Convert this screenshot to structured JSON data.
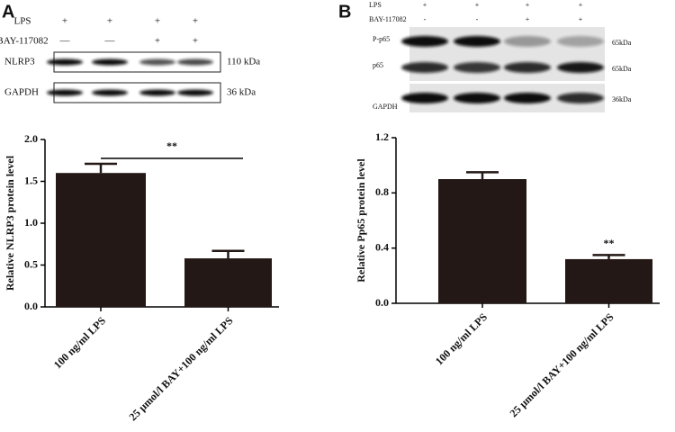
{
  "panel_labels": [
    "A",
    "B"
  ],
  "blots": [
    {
      "rows": [
        {
          "label": "LPS",
          "marks": [
            "+",
            "+",
            "+",
            "+"
          ]
        },
        {
          "label": "BAY-117082",
          "marks": [
            "—",
            "—",
            "+",
            "+"
          ]
        }
      ],
      "bands": [
        {
          "label": "NLRP3",
          "size": "110 kDa"
        },
        {
          "label": "GAPDH",
          "size": "36 kDa"
        }
      ]
    },
    {
      "rows": [
        {
          "label": "LPS",
          "marks": [
            "+",
            "+",
            "+",
            "+"
          ]
        },
        {
          "label": "BAY-117082",
          "marks": [
            "-",
            "-",
            "+",
            "+"
          ]
        }
      ],
      "bands": [
        {
          "label": "P-p65",
          "size": "65kDa"
        },
        {
          "label": "p65",
          "size": "65kDa"
        },
        {
          "label": "GAPDH",
          "size": "36kDa"
        }
      ]
    }
  ],
  "chart_data": [
    {
      "type": "bar",
      "y_label": "Relative NLRP3 protein level",
      "categories": [
        "100 ng/ml LPS",
        "25 μmol/l BAY+100 ng/ml LPS"
      ],
      "values": [
        1.6,
        0.58
      ],
      "errors": [
        0.11,
        0.09
      ],
      "color": "#231815",
      "ylim": [
        0,
        2.0
      ],
      "yticks": [
        {
          "value": 0,
          "label": "0.0"
        },
        {
          "value": 0.5,
          "label": "0.5"
        },
        {
          "value": 1.0,
          "label": "1.0"
        },
        {
          "value": 1.5,
          "label": "1.5"
        },
        {
          "value": 2.0,
          "label": "2.0"
        }
      ],
      "annotation": "**"
    },
    {
      "type": "bar",
      "y_label": "Relative Pp65 protein level",
      "categories": [
        "100 ng/ml LPS",
        "25 μmol/l BAY+100 ng/ml LPS"
      ],
      "values": [
        0.9,
        0.32
      ],
      "errors": [
        0.05,
        0.03
      ],
      "color": "#231815",
      "ylim": [
        0,
        1.2
      ],
      "yticks": [
        {
          "value": 0,
          "label": "0.0"
        },
        {
          "value": 0.4,
          "label": "0.4"
        },
        {
          "value": 0.8,
          "label": "0.8"
        },
        {
          "value": 1.2,
          "label": "1.2"
        }
      ],
      "annotation": "**"
    }
  ]
}
